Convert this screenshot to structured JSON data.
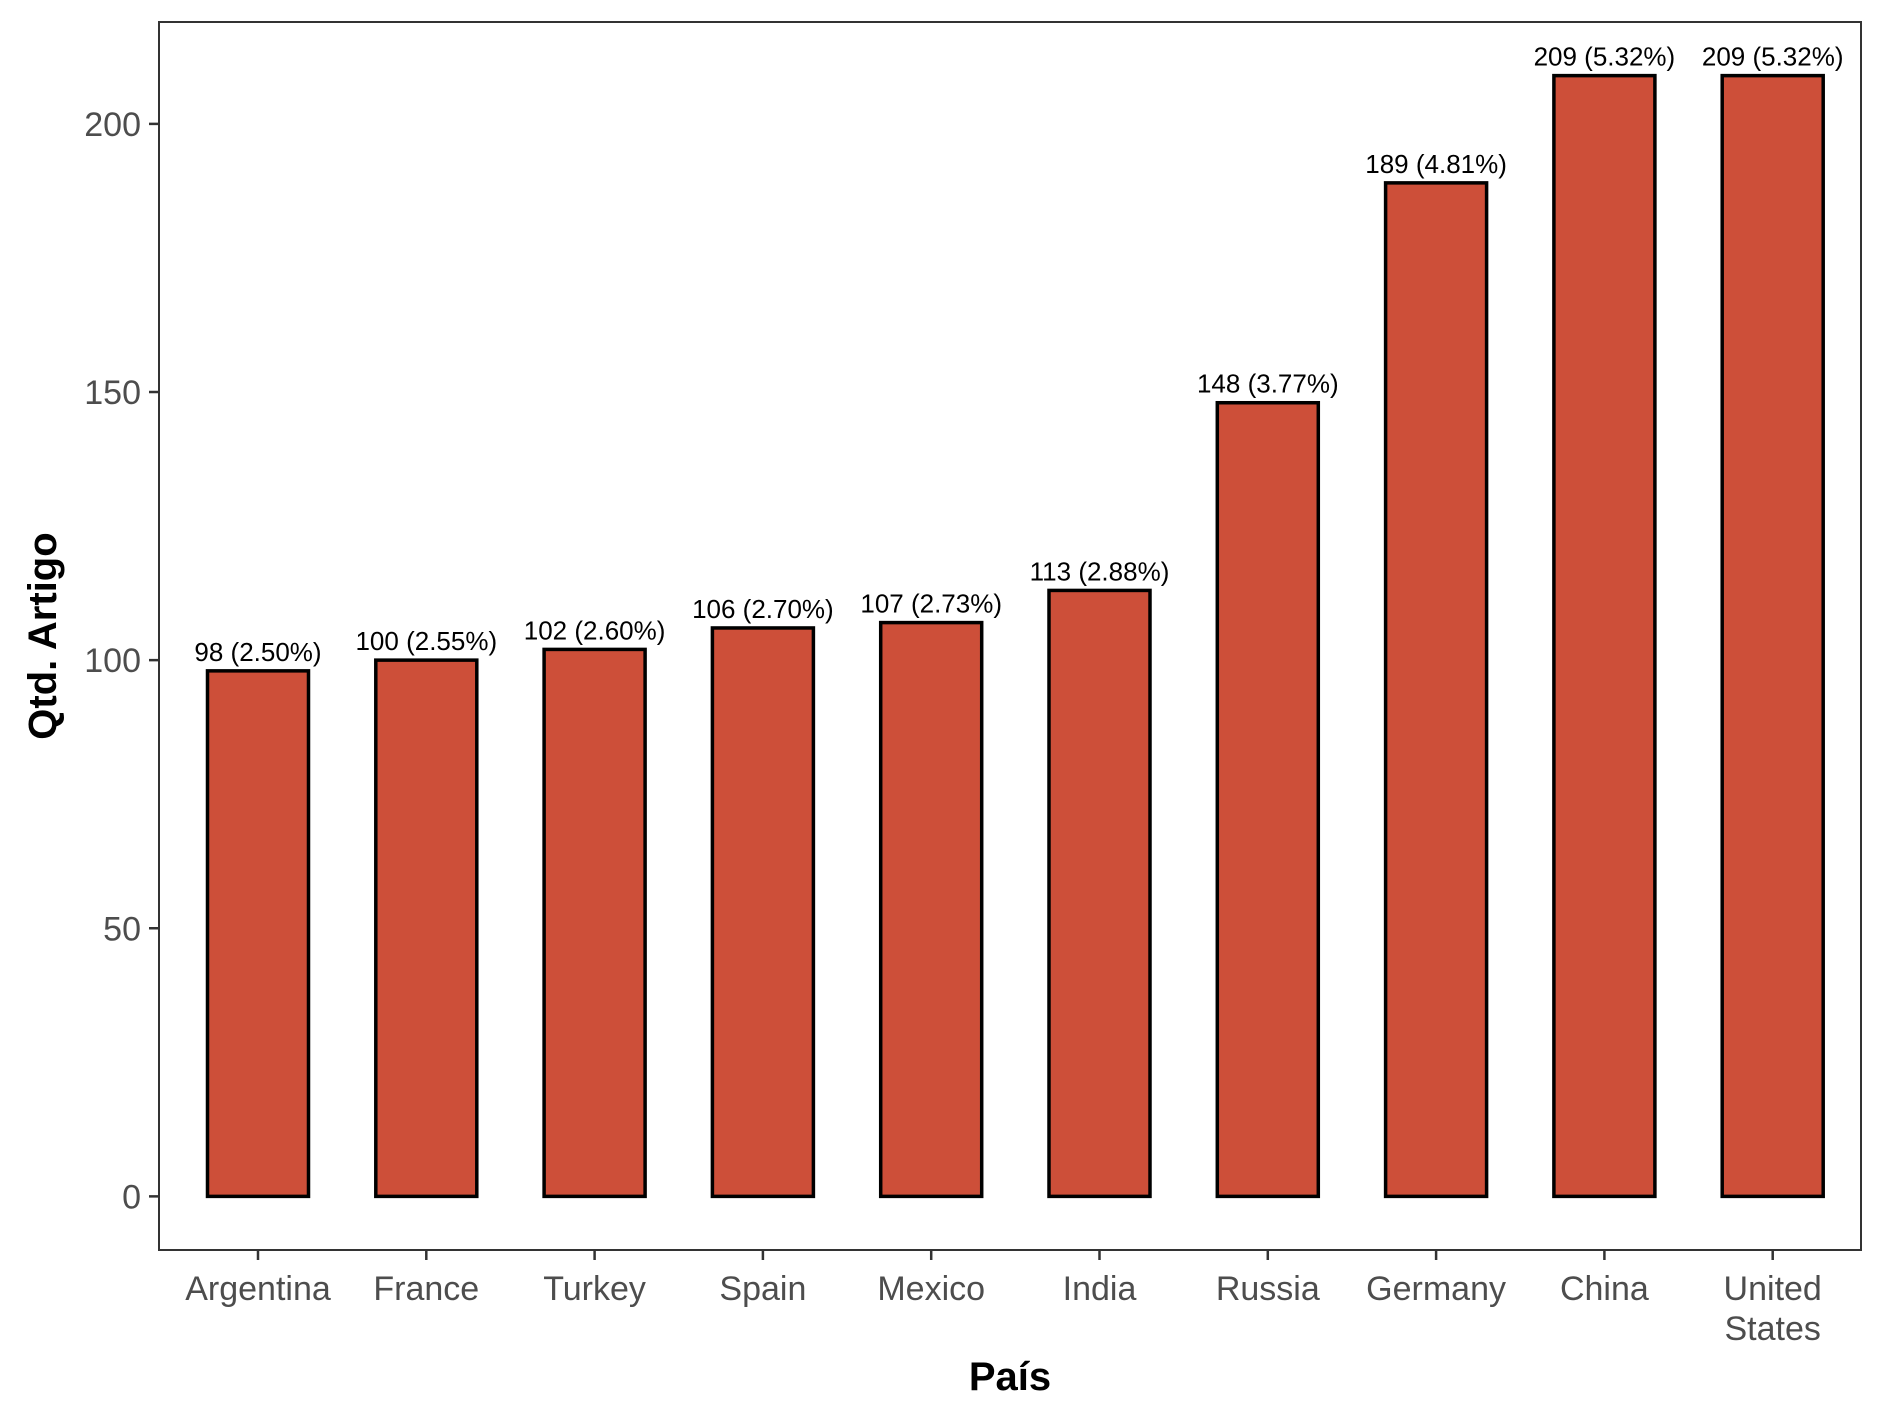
{
  "chart_data": {
    "type": "bar",
    "title": "",
    "xlabel": "País",
    "ylabel": "Qtd. Artigo",
    "categories": [
      [
        "Argentina"
      ],
      [
        "France"
      ],
      [
        "Turkey"
      ],
      [
        "Spain"
      ],
      [
        "Mexico"
      ],
      [
        "India"
      ],
      [
        "Russia"
      ],
      [
        "Germany"
      ],
      [
        "China"
      ],
      [
        "United",
        "States"
      ]
    ],
    "values": [
      98,
      100,
      102,
      106,
      107,
      113,
      148,
      189,
      209,
      209
    ],
    "data_labels": [
      "98 (2.50%)",
      "100 (2.55%)",
      "102 (2.60%)",
      "106 (2.70%)",
      "107 (2.73%)",
      "113 (2.88%)",
      "148 (3.77%)",
      "189 (4.81%)",
      "209 (5.32%)",
      "209 (5.32%)"
    ],
    "yticks": [
      0,
      50,
      100,
      150,
      200
    ],
    "ylim": [
      -10,
      219
    ],
    "grid": false,
    "legend": "none",
    "colors": {
      "bar_fill": "#cd4f39",
      "bar_stroke": "#000000",
      "panel_border": "#333333",
      "tick_text": "#4d4d4d"
    }
  }
}
